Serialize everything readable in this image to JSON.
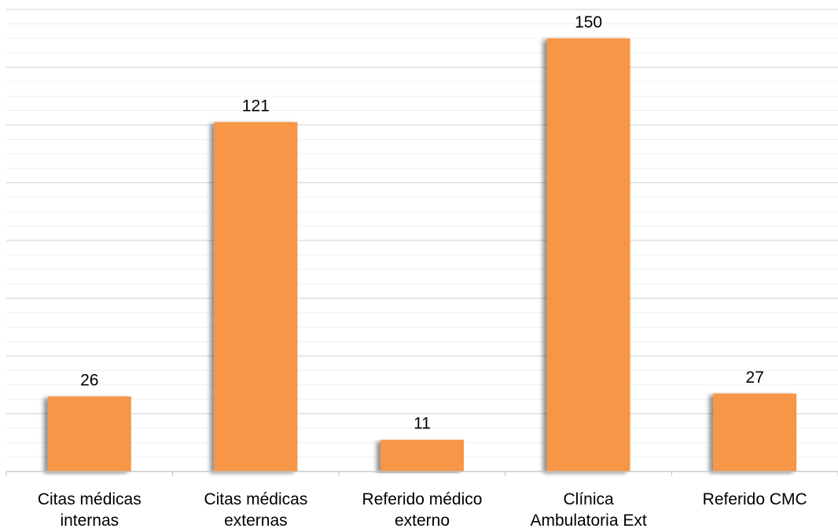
{
  "chart_data": {
    "type": "bar",
    "categories": [
      "Citas médicas\ninternas",
      "Citas médicas\nexternas",
      "Referido médico\nexterno",
      "Clínica\nAmbulatoria Ext",
      "Referido CMC"
    ],
    "values": [
      26,
      121,
      11,
      150,
      27
    ],
    "data_labels": [
      "26",
      "121",
      "11",
      "150",
      "27"
    ],
    "title": "",
    "xlabel": "",
    "ylabel": "",
    "ylim": [
      0,
      160
    ],
    "grid": true,
    "legend": "none",
    "colors": {
      "bar": "#F79646",
      "bar_shadow": "#bdbdbd",
      "grid": "#d9d9d9",
      "axis": "#bfbfbf"
    }
  }
}
